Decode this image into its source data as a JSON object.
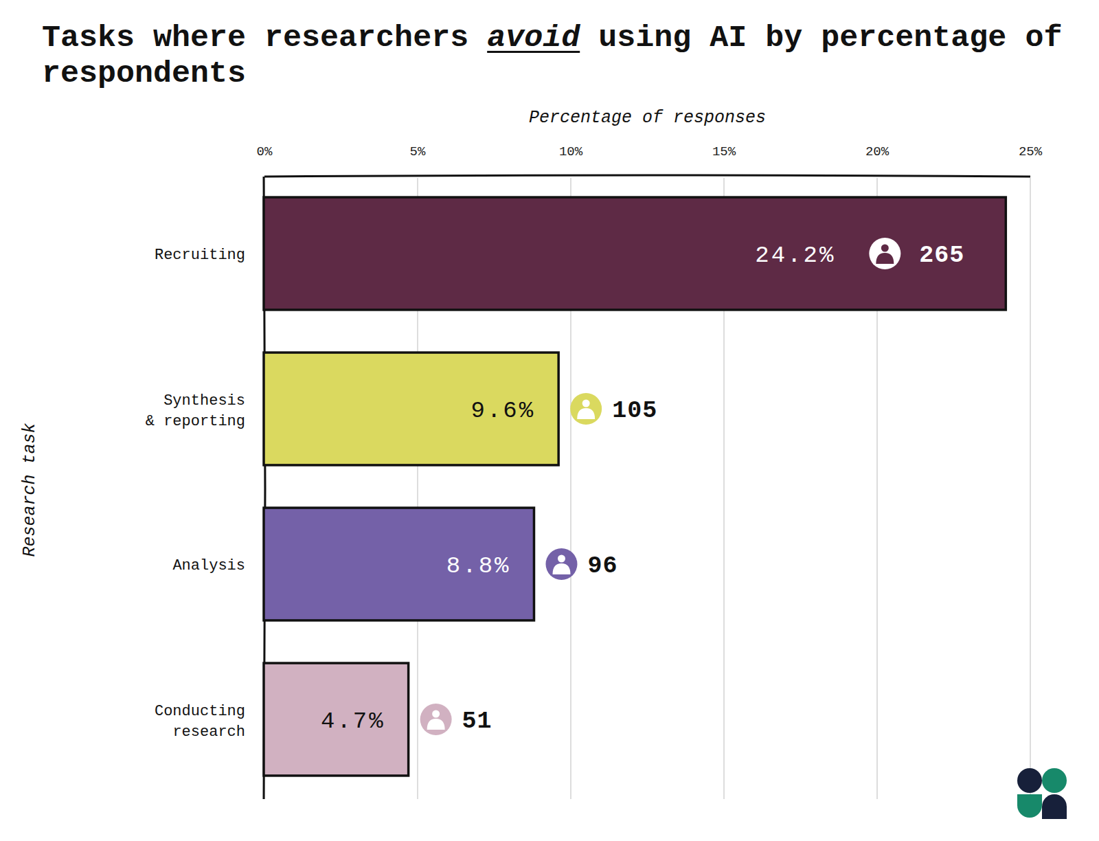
{
  "chart_data": {
    "type": "bar",
    "orientation": "horizontal",
    "title": "Tasks where researchers avoid using AI by percentage of respondents",
    "x_label": "Percentage of responses",
    "y_label": "Research task",
    "categories": [
      "Recruiting",
      "Synthesis & reporting",
      "Analysis",
      "Conducting research"
    ],
    "values": [
      24.2,
      9.6,
      8.8,
      4.7
    ],
    "value_labels": [
      "24.2%",
      "9.6%",
      "8.8%",
      "4.7%"
    ],
    "counts": [
      265,
      105,
      96,
      51
    ],
    "colors": [
      "#5e2a45",
      "#dad95f",
      "#7461a8",
      "#d1b1c1"
    ],
    "xlim": [
      0,
      25
    ],
    "xticks": [
      {
        "value": 0,
        "label": "0%"
      },
      {
        "value": 5,
        "label": "5%"
      },
      {
        "value": 10,
        "label": "10%"
      },
      {
        "value": 15,
        "label": "15%"
      },
      {
        "value": 20,
        "label": "20%"
      },
      {
        "value": 25,
        "label": "25%"
      }
    ],
    "grid": true,
    "data_labels": true
  }
}
